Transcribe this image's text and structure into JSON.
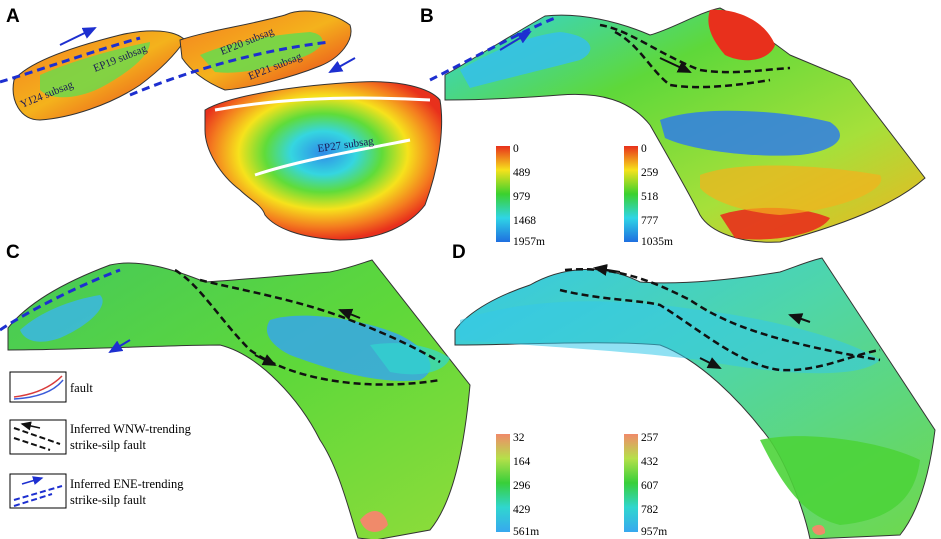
{
  "panels": [
    {
      "letter": "A"
    },
    {
      "letter": "B"
    },
    {
      "letter": "C"
    },
    {
      "letter": "D"
    }
  ],
  "subsags": [
    "YJ24 subsag",
    "EP19 subsag",
    "EP20 subsag",
    "EP21 subsag",
    "EP27 subsag"
  ],
  "colorbars": [
    {
      "ticks": [
        "0",
        "489",
        "979",
        "1468",
        "1957m"
      ],
      "colors": [
        "#e8301c",
        "#f6e21c",
        "#3bd12e",
        "#2fd5e6",
        "#1f6fe0"
      ]
    },
    {
      "ticks": [
        "0",
        "259",
        "518",
        "777",
        "1035m"
      ],
      "colors": [
        "#e8301c",
        "#f6e21c",
        "#3bd12e",
        "#2fd5e6",
        "#1f6fe0"
      ]
    },
    {
      "ticks": [
        "32",
        "164",
        "296",
        "429",
        "561m"
      ],
      "colors": [
        "#f08a6a",
        "#b5e04a",
        "#38cf3a",
        "#30d6cf",
        "#37a8ef"
      ]
    },
    {
      "ticks": [
        "257",
        "432",
        "607",
        "782",
        "957m"
      ],
      "colors": [
        "#f08a6a",
        "#b5e04a",
        "#38cf3a",
        "#30d6cf",
        "#37a8ef"
      ]
    }
  ],
  "legend": {
    "fault": "fault",
    "wnw": [
      "Inferred WNW-trending",
      "strike-silp fault"
    ],
    "ene": [
      "Inferred ENE-trending",
      "strike-silp fault"
    ]
  },
  "colors": {
    "ene_fault": "#1d2fd0",
    "wnw_fault": "#111111",
    "red": "#e8301c",
    "orange": "#f47d1f",
    "yellow": "#f6e21c",
    "green": "#3bd12e",
    "cyan": "#2fd5e6",
    "blue": "#1f6fe0"
  }
}
